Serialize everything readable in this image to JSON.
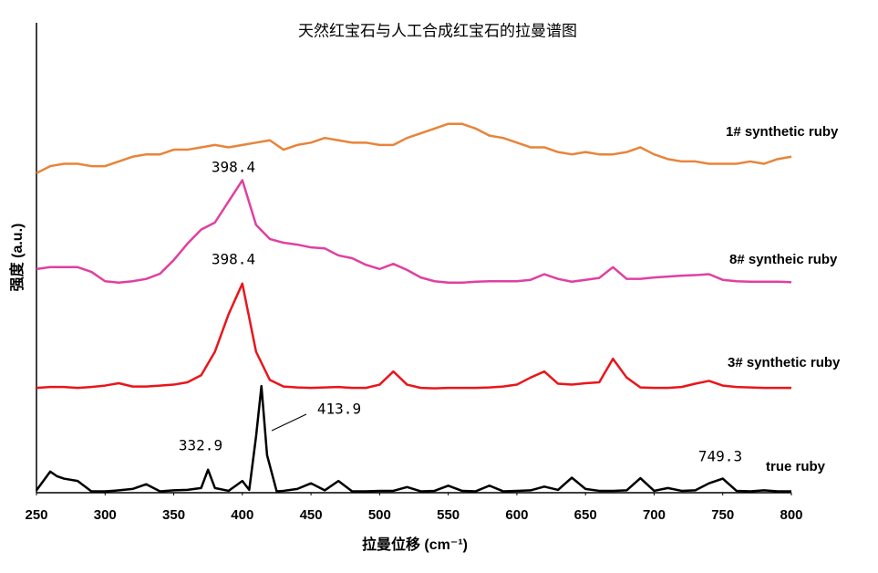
{
  "chart_data": {
    "type": "line",
    "title": "天然红宝石与人工合成红宝石的拉曼谱图",
    "xlabel": "拉曼位移 (cm⁻¹)",
    "ylabel": "强度 (a.u.)",
    "xlim": [
      250,
      800
    ],
    "xticks": [
      250,
      300,
      350,
      400,
      450,
      500,
      550,
      600,
      650,
      700,
      750,
      800
    ],
    "ylim": [
      0,
      100
    ],
    "x": [
      250,
      260,
      270,
      280,
      290,
      300,
      310,
      320,
      330,
      340,
      350,
      360,
      370,
      380,
      390,
      400,
      410,
      420,
      430,
      440,
      450,
      460,
      470,
      480,
      490,
      500,
      510,
      520,
      530,
      540,
      550,
      560,
      570,
      580,
      590,
      600,
      610,
      620,
      630,
      640,
      650,
      660,
      670,
      680,
      690,
      700,
      710,
      720,
      730,
      740,
      750,
      760,
      770,
      780,
      790,
      800
    ],
    "series": [
      {
        "name": "1# synthetic ruby",
        "color": "#e8843a",
        "values": [
          68,
          69.5,
          70,
          70,
          69.5,
          69.5,
          70.5,
          71.5,
          72,
          72,
          73,
          73,
          73.5,
          74,
          73.5,
          74,
          74.5,
          75,
          73,
          74,
          74.5,
          75.5,
          75,
          74.5,
          74.5,
          74,
          74,
          75.5,
          76.5,
          77.5,
          78.5,
          78.5,
          77.5,
          76,
          75.5,
          74.5,
          73.5,
          73.5,
          72.5,
          72,
          72.5,
          72,
          72,
          72.5,
          73.5,
          72,
          71,
          70.5,
          70.5,
          70,
          70,
          70,
          70.5,
          70,
          71,
          71.5
        ]
      },
      {
        "name": "8# syntheic ruby",
        "color": "#e040a0",
        "values": [
          47.6,
          48,
          48,
          48,
          47,
          45,
          44.7,
          45,
          45.5,
          46.6,
          49.5,
          53,
          56,
          57.5,
          62,
          66.5,
          57,
          54,
          53.2,
          52.8,
          52.2,
          52,
          50.5,
          49.9,
          48.5,
          47.6,
          48.7,
          47.4,
          45.8,
          45,
          44.7,
          44.7,
          44.9,
          45,
          45,
          45,
          45.3,
          46.5,
          45.5,
          44.9,
          45.3,
          45.7,
          48,
          45.5,
          45.5,
          45.8,
          46,
          46.2,
          46.3,
          46.5,
          45.3,
          45,
          44.9,
          44.9,
          44.9,
          44.8
        ]
      },
      {
        "name": "3# synthetic ruby",
        "color": "#e8161b",
        "values": [
          22.3,
          22.5,
          22.5,
          22.3,
          22.5,
          22.8,
          23.3,
          22.6,
          22.6,
          22.8,
          23,
          23.5,
          25,
          30,
          38,
          44.5,
          30,
          24,
          22.6,
          22.4,
          22.3,
          22.4,
          22.5,
          22.3,
          22.3,
          23,
          25.8,
          23,
          22.3,
          22.2,
          22.3,
          22.3,
          22.3,
          22.4,
          22.6,
          23,
          24.5,
          25.8,
          23.2,
          23,
          23.3,
          23.5,
          28.5,
          24.5,
          22.4,
          22.3,
          22.3,
          22.5,
          23.2,
          23.8,
          22.8,
          22.5,
          22.4,
          22.3,
          22.3,
          22.3
        ]
      },
      {
        "name": "true ruby",
        "color": "#000000",
        "x": [
          250,
          255,
          260,
          265,
          270,
          280,
          290,
          300,
          310,
          320,
          330,
          340,
          350,
          360,
          370,
          375,
          380,
          390,
          400,
          405,
          410,
          413.9,
          418,
          425,
          430,
          440,
          450,
          460,
          470,
          480,
          490,
          500,
          510,
          520,
          530,
          540,
          550,
          560,
          570,
          580,
          590,
          600,
          610,
          620,
          630,
          640,
          650,
          660,
          670,
          680,
          690,
          700,
          710,
          720,
          730,
          740,
          750,
          760,
          770,
          780,
          790,
          800
        ],
        "values": [
          0.5,
          2.5,
          4.5,
          3.5,
          3,
          2.5,
          0.3,
          0.3,
          0.5,
          0.8,
          1.8,
          0.3,
          0.5,
          0.6,
          1,
          4.9,
          1,
          0.4,
          2.5,
          0.6,
          12,
          22.7,
          8,
          0.3,
          0.4,
          0.8,
          2,
          0.5,
          2.5,
          0.3,
          0.3,
          0.4,
          0.4,
          1.2,
          0.3,
          0.4,
          1.5,
          0.4,
          0.3,
          1.5,
          0.3,
          0.4,
          0.5,
          1.3,
          0.6,
          3.2,
          0.8,
          0.4,
          0.4,
          0.5,
          3.1,
          0.4,
          1,
          0.4,
          0.5,
          2,
          3,
          0.4,
          0.3,
          0.5,
          0.3,
          0.3
        ]
      }
    ],
    "annotations": [
      "398.4",
      "398.4",
      "413.9",
      "332.9",
      "749.3"
    ]
  }
}
